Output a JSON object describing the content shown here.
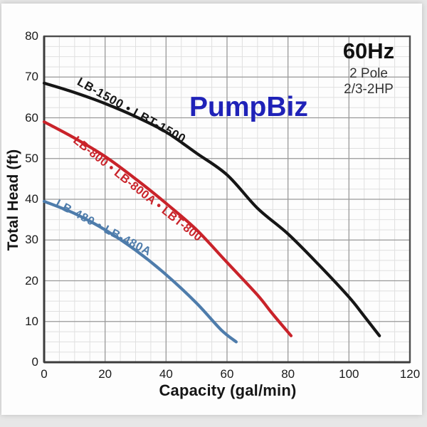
{
  "header": {
    "brand": "PumpBiz",
    "frequency": "60Hz",
    "pole": "2 Pole",
    "horsepower": "2/3-2HP"
  },
  "colors": {
    "brand_blue": "#1f22b8",
    "curve_black": "#161616",
    "curve_red": "#c9232a",
    "curve_blue": "#4e7cab",
    "grid_major": "#9a9a9a",
    "grid_minor": "#e0e0e0",
    "frame": "#4d4d4d",
    "axis": "#3c3c3c",
    "text": "#1b1b1b"
  },
  "chart_data": {
    "type": "line",
    "title": "",
    "xlabel": "Capacity (gal/min)",
    "ylabel": "Total Head (ft)",
    "xlim": [
      0,
      120
    ],
    "ylim": [
      0,
      80
    ],
    "x_ticks": [
      0,
      20,
      40,
      60,
      80,
      100,
      120
    ],
    "y_ticks": [
      0,
      10,
      20,
      30,
      40,
      50,
      60,
      70,
      80
    ],
    "x_minor_step": 5,
    "y_minor_step": 2.5,
    "grid": true,
    "legend_position": "labels-on-curves",
    "series": [
      {
        "name": "LB-1500 • LBT-1500",
        "color": "#161616",
        "points": [
          [
            0,
            68.5
          ],
          [
            10,
            66.2
          ],
          [
            20,
            63.5
          ],
          [
            30,
            60.3
          ],
          [
            40,
            56.5
          ],
          [
            50,
            51.3
          ],
          [
            60,
            46
          ],
          [
            70,
            37.8
          ],
          [
            80,
            31.5
          ],
          [
            90,
            24
          ],
          [
            100,
            16
          ],
          [
            105,
            11.3
          ],
          [
            110,
            6.5
          ]
        ]
      },
      {
        "name": "LB-800 • LB-800A • LBT-800",
        "color": "#c9232a",
        "points": [
          [
            0,
            59
          ],
          [
            10,
            55
          ],
          [
            20,
            50.5
          ],
          [
            30,
            45
          ],
          [
            40,
            39
          ],
          [
            50,
            32.5
          ],
          [
            60,
            24.5
          ],
          [
            70,
            16.5
          ],
          [
            75,
            11.8
          ],
          [
            81,
            6.5
          ]
        ]
      },
      {
        "name": "LB-480 • LB-480A",
        "color": "#4e7cab",
        "points": [
          [
            0,
            39.5
          ],
          [
            10,
            36.5
          ],
          [
            20,
            32.5
          ],
          [
            30,
            27.5
          ],
          [
            40,
            21.5
          ],
          [
            50,
            14.5
          ],
          [
            58,
            8
          ],
          [
            63,
            5
          ]
        ]
      }
    ]
  }
}
